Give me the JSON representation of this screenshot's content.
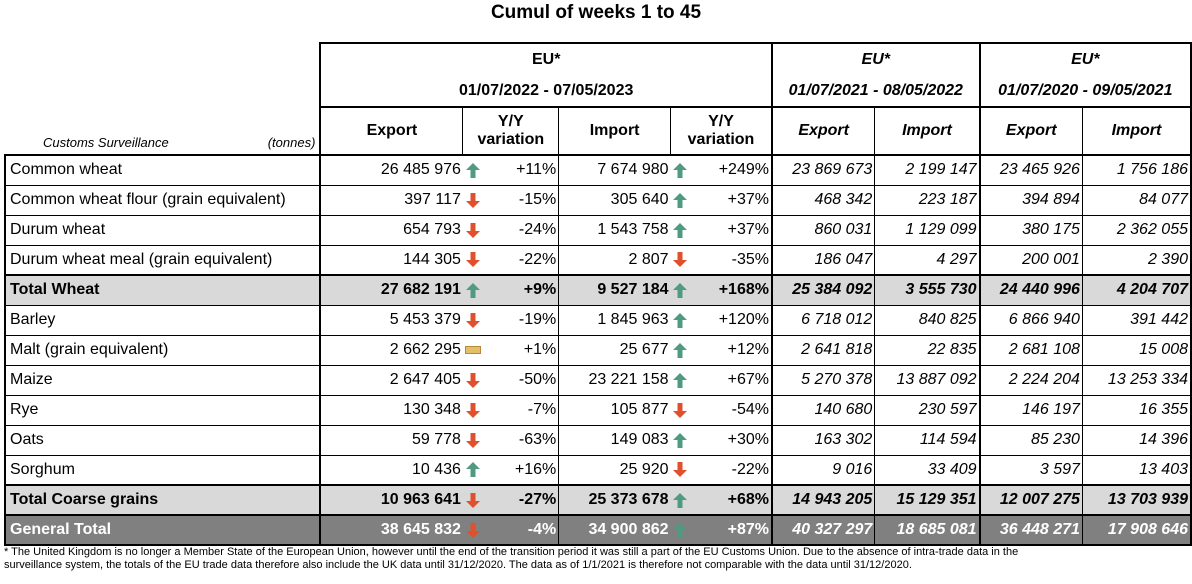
{
  "title": "Cumul of weeks 1 to 45",
  "header": {
    "customs_label": "Customs Surveillance",
    "unit_label": "(tonnes)",
    "groups": [
      {
        "eu": "EU*",
        "period": "01/07/2022 - 07/05/2023"
      },
      {
        "eu": "EU*",
        "period": "01/07/2021 - 08/05/2022"
      },
      {
        "eu": "EU*",
        "period": "01/07/2020 - 09/05/2021"
      }
    ],
    "columns": [
      "Export",
      "Y/Y\nvariation",
      "Import",
      "Y/Y\nvariation",
      "Export",
      "Import",
      "Export",
      "Import"
    ]
  },
  "rows": [
    {
      "label": "Common wheat",
      "exp": "26 485 976",
      "exp_trend": "up",
      "exp_var": "+11%",
      "imp": "7 674 980",
      "imp_trend": "up",
      "imp_var": "+249%",
      "exp_2122": "23 869 673",
      "imp_2122": "2 199 147",
      "exp_2021": "23 465 926",
      "imp_2021": "1 756 186",
      "style": "normal"
    },
    {
      "label": "Common wheat flour (grain equivalent)",
      "exp": "397 117",
      "exp_trend": "down",
      "exp_var": "-15%",
      "imp": "305 640",
      "imp_trend": "up",
      "imp_var": "+37%",
      "exp_2122": "468 342",
      "imp_2122": "223 187",
      "exp_2021": "394 894",
      "imp_2021": "84 077",
      "style": "normal"
    },
    {
      "label": "Durum wheat",
      "exp": "654 793",
      "exp_trend": "down",
      "exp_var": "-24%",
      "imp": "1 543 758",
      "imp_trend": "up",
      "imp_var": "+37%",
      "exp_2122": "860 031",
      "imp_2122": "1 129 099",
      "exp_2021": "380 175",
      "imp_2021": "2 362 055",
      "style": "normal"
    },
    {
      "label": "Durum wheat meal (grain equivalent)",
      "exp": "144 305",
      "exp_trend": "down",
      "exp_var": "-22%",
      "imp": "2 807",
      "imp_trend": "down",
      "imp_var": "-35%",
      "exp_2122": "186 047",
      "imp_2122": "4 297",
      "exp_2021": "200 001",
      "imp_2021": "2 390",
      "style": "normal"
    },
    {
      "label": "Total Wheat",
      "exp": "27 682 191",
      "exp_trend": "up",
      "exp_var": "+9%",
      "imp": "9 527 184",
      "imp_trend": "up",
      "imp_var": "+168%",
      "exp_2122": "25 384 092",
      "imp_2122": "3 555 730",
      "exp_2021": "24 440 996",
      "imp_2021": "4 204 707",
      "style": "total"
    },
    {
      "label": "Barley",
      "exp": "5 453 379",
      "exp_trend": "down",
      "exp_var": "-19%",
      "imp": "1 845 963",
      "imp_trend": "up",
      "imp_var": "+120%",
      "exp_2122": "6 718 012",
      "imp_2122": "840 825",
      "exp_2021": "6 866 940",
      "imp_2021": "391 442",
      "style": "normal"
    },
    {
      "label": "Malt (grain equivalent)",
      "exp": "2 662 295",
      "exp_trend": "flat",
      "exp_var": "+1%",
      "imp": "25 677",
      "imp_trend": "up",
      "imp_var": "+12%",
      "exp_2122": "2 641 818",
      "imp_2122": "22 835",
      "exp_2021": "2 681 108",
      "imp_2021": "15 008",
      "style": "normal"
    },
    {
      "label": "Maize",
      "exp": "2 647 405",
      "exp_trend": "down",
      "exp_var": "-50%",
      "imp": "23 221 158",
      "imp_trend": "up",
      "imp_var": "+67%",
      "exp_2122": "5 270 378",
      "imp_2122": "13 887 092",
      "exp_2021": "2 224 204",
      "imp_2021": "13 253 334",
      "style": "normal"
    },
    {
      "label": "Rye",
      "exp": "130 348",
      "exp_trend": "down",
      "exp_var": "-7%",
      "imp": "105 877",
      "imp_trend": "down",
      "imp_var": "-54%",
      "exp_2122": "140 680",
      "imp_2122": "230 597",
      "exp_2021": "146 197",
      "imp_2021": "16 355",
      "style": "normal"
    },
    {
      "label": "Oats",
      "exp": "59 778",
      "exp_trend": "down",
      "exp_var": "-63%",
      "imp": "149 083",
      "imp_trend": "up",
      "imp_var": "+30%",
      "exp_2122": "163 302",
      "imp_2122": "114 594",
      "exp_2021": "85 230",
      "imp_2021": "14 396",
      "style": "normal"
    },
    {
      "label": "Sorghum",
      "exp": "10 436",
      "exp_trend": "up",
      "exp_var": "+16%",
      "imp": "25 920",
      "imp_trend": "down",
      "imp_var": "-22%",
      "exp_2122": "9 016",
      "imp_2122": "33 409",
      "exp_2021": "3 597",
      "imp_2021": "13 403",
      "style": "normal"
    },
    {
      "label": "Total Coarse grains",
      "exp": "10 963 641",
      "exp_trend": "down",
      "exp_var": "-27%",
      "imp": "25 373 678",
      "imp_trend": "up",
      "imp_var": "+68%",
      "exp_2122": "14 943 205",
      "imp_2122": "15 129 351",
      "exp_2021": "12 007 275",
      "imp_2021": "13 703 939",
      "style": "total"
    },
    {
      "label": "General Total",
      "exp": "38 645 832",
      "exp_trend": "down",
      "exp_var": "-4%",
      "imp": "34 900 862",
      "imp_trend": "up",
      "imp_var": "+87%",
      "exp_2122": "40 327 297",
      "imp_2122": "18 685 081",
      "exp_2021": "36 448 271",
      "imp_2021": "17 908 646",
      "style": "general"
    }
  ],
  "trend_icons": {
    "up": "up-arrow-icon",
    "down": "down-arrow-icon",
    "flat": "flat-bar-icon"
  },
  "colors": {
    "up": "#4f9a80",
    "down": "#e0502c",
    "flat": "#e3c068",
    "total_bg": "#d9d9d9",
    "general_bg": "#808080"
  },
  "footnote": "* The United Kingdom is no longer a Member State of the European Union, however until the end of the transition period it was still a part of the EU Customs Union. Due to the absence of intra-trade data in the\nsurveillance system, the totals of the EU trade data  therefore also include the UK data until 31/12/2020. The data as of 1/1/2021 is therefore not comparable with the data until 31/12/2020."
}
